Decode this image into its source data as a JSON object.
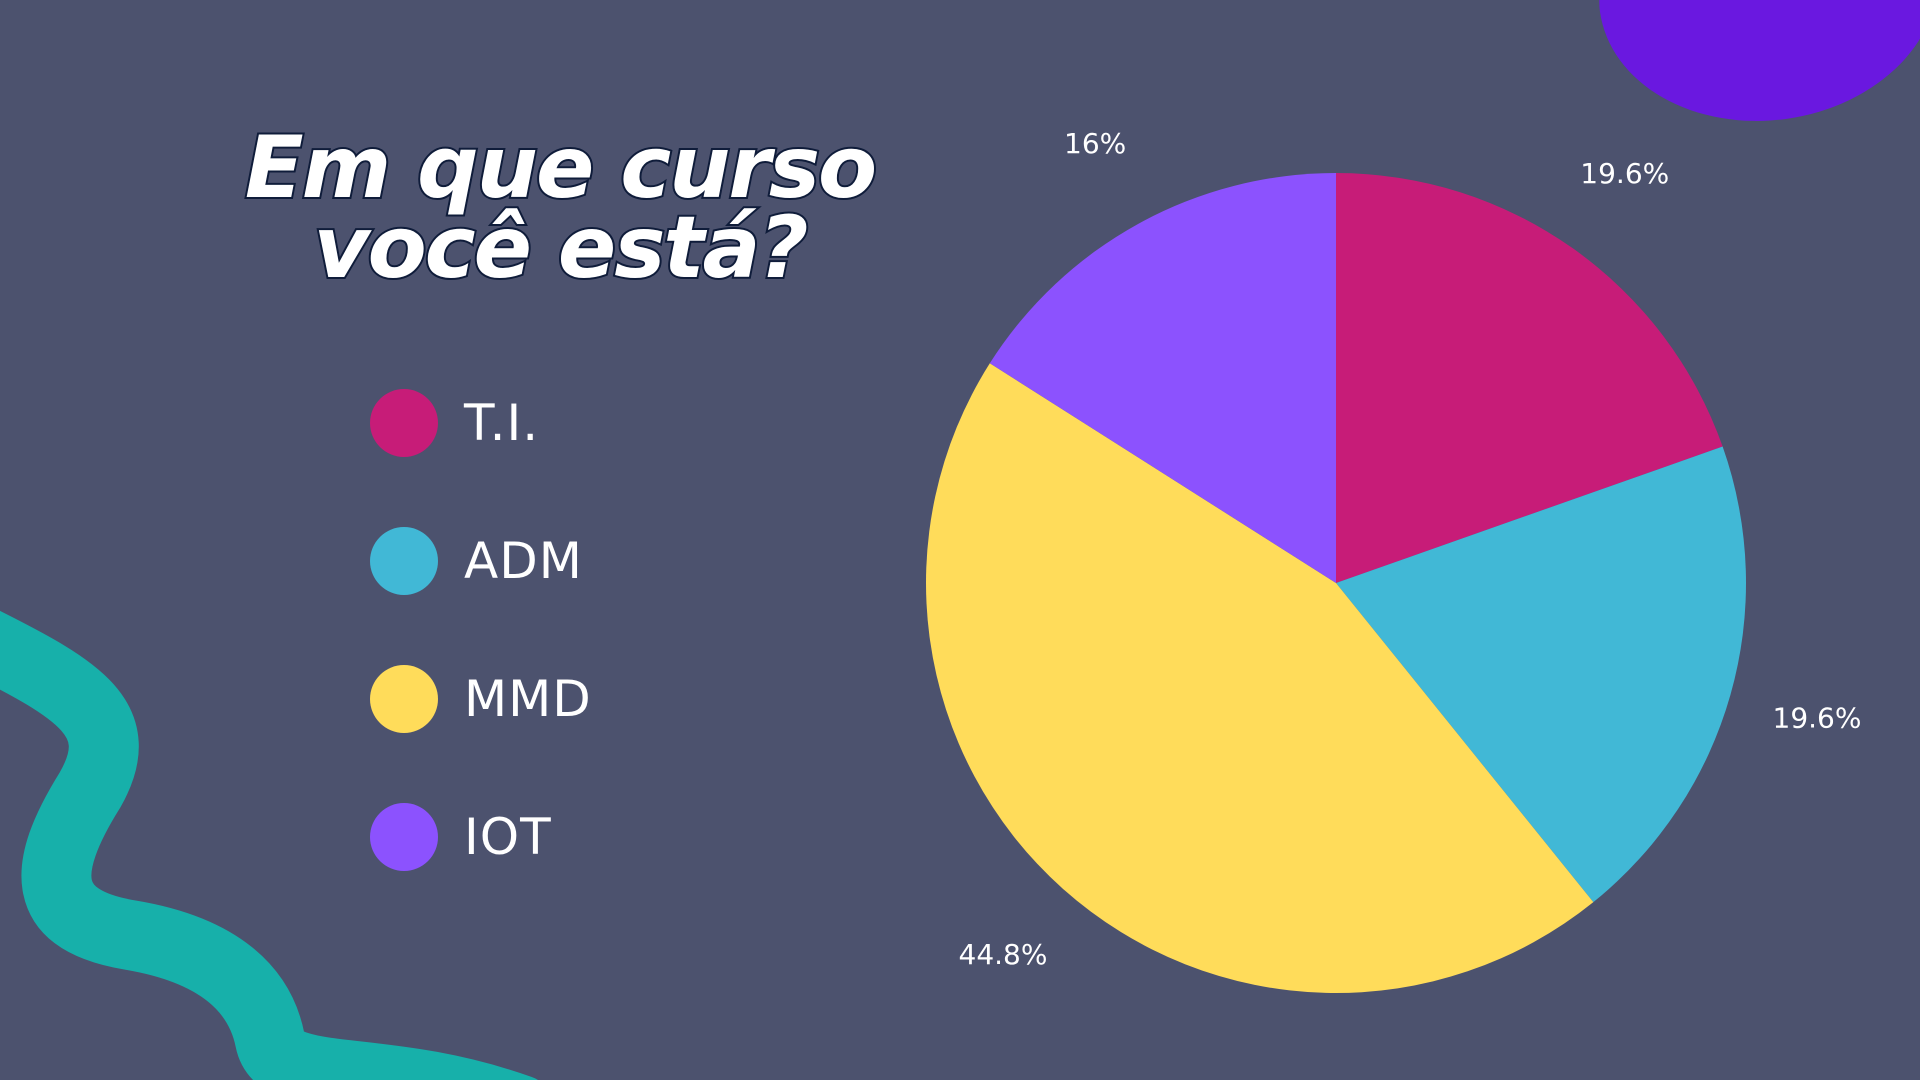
{
  "colors": {
    "background": "#4c526e",
    "wave": "#17b0aa",
    "blob": "#6a18e0"
  },
  "title": {
    "line1": "Em que curso",
    "line2": "você está?"
  },
  "chart_data": {
    "type": "pie",
    "title": "Em que curso você está?",
    "legend_position": "left",
    "categories": [
      "T.I.",
      "ADM",
      "MMD",
      "IOT"
    ],
    "values": [
      19.6,
      19.6,
      44.8,
      16
    ],
    "labels": [
      "19.6%",
      "19.6%",
      "44.8%",
      "16%"
    ],
    "colors": [
      "#c71c78",
      "#41b8d6",
      "#ffdc5a",
      "#8c52fe"
    ]
  }
}
